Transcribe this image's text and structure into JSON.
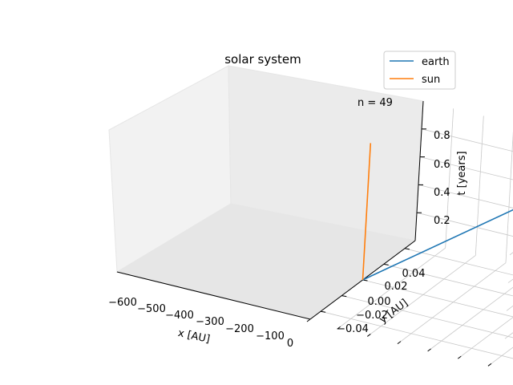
{
  "chart_data": {
    "type": "line3d",
    "title": "solar system",
    "annotation": "n = 49",
    "xlabel": "x [AU]",
    "ylabel": "y [AU]",
    "zlabel": "t [years]",
    "xticks": [
      "−600",
      "−500",
      "−400",
      "−300",
      "−200",
      "−100",
      "0"
    ],
    "yticks": [
      "−0.04",
      "−0.02",
      "0.00",
      "0.02",
      "0.04"
    ],
    "zticks": [
      "0.2",
      "0.4",
      "0.6",
      "0.8"
    ],
    "grid": true,
    "legend_position": "top-right",
    "series": [
      {
        "name": "earth",
        "color": "#1f77b4",
        "x": [
          -620,
          0
        ],
        "y": [
          0,
          0
        ],
        "t": [
          0.98,
          0.0
        ]
      },
      {
        "name": "sun",
        "color": "#ff7f0e",
        "x": [
          0,
          0
        ],
        "y": [
          0,
          0
        ],
        "t": [
          0.0,
          0.98
        ]
      }
    ]
  }
}
